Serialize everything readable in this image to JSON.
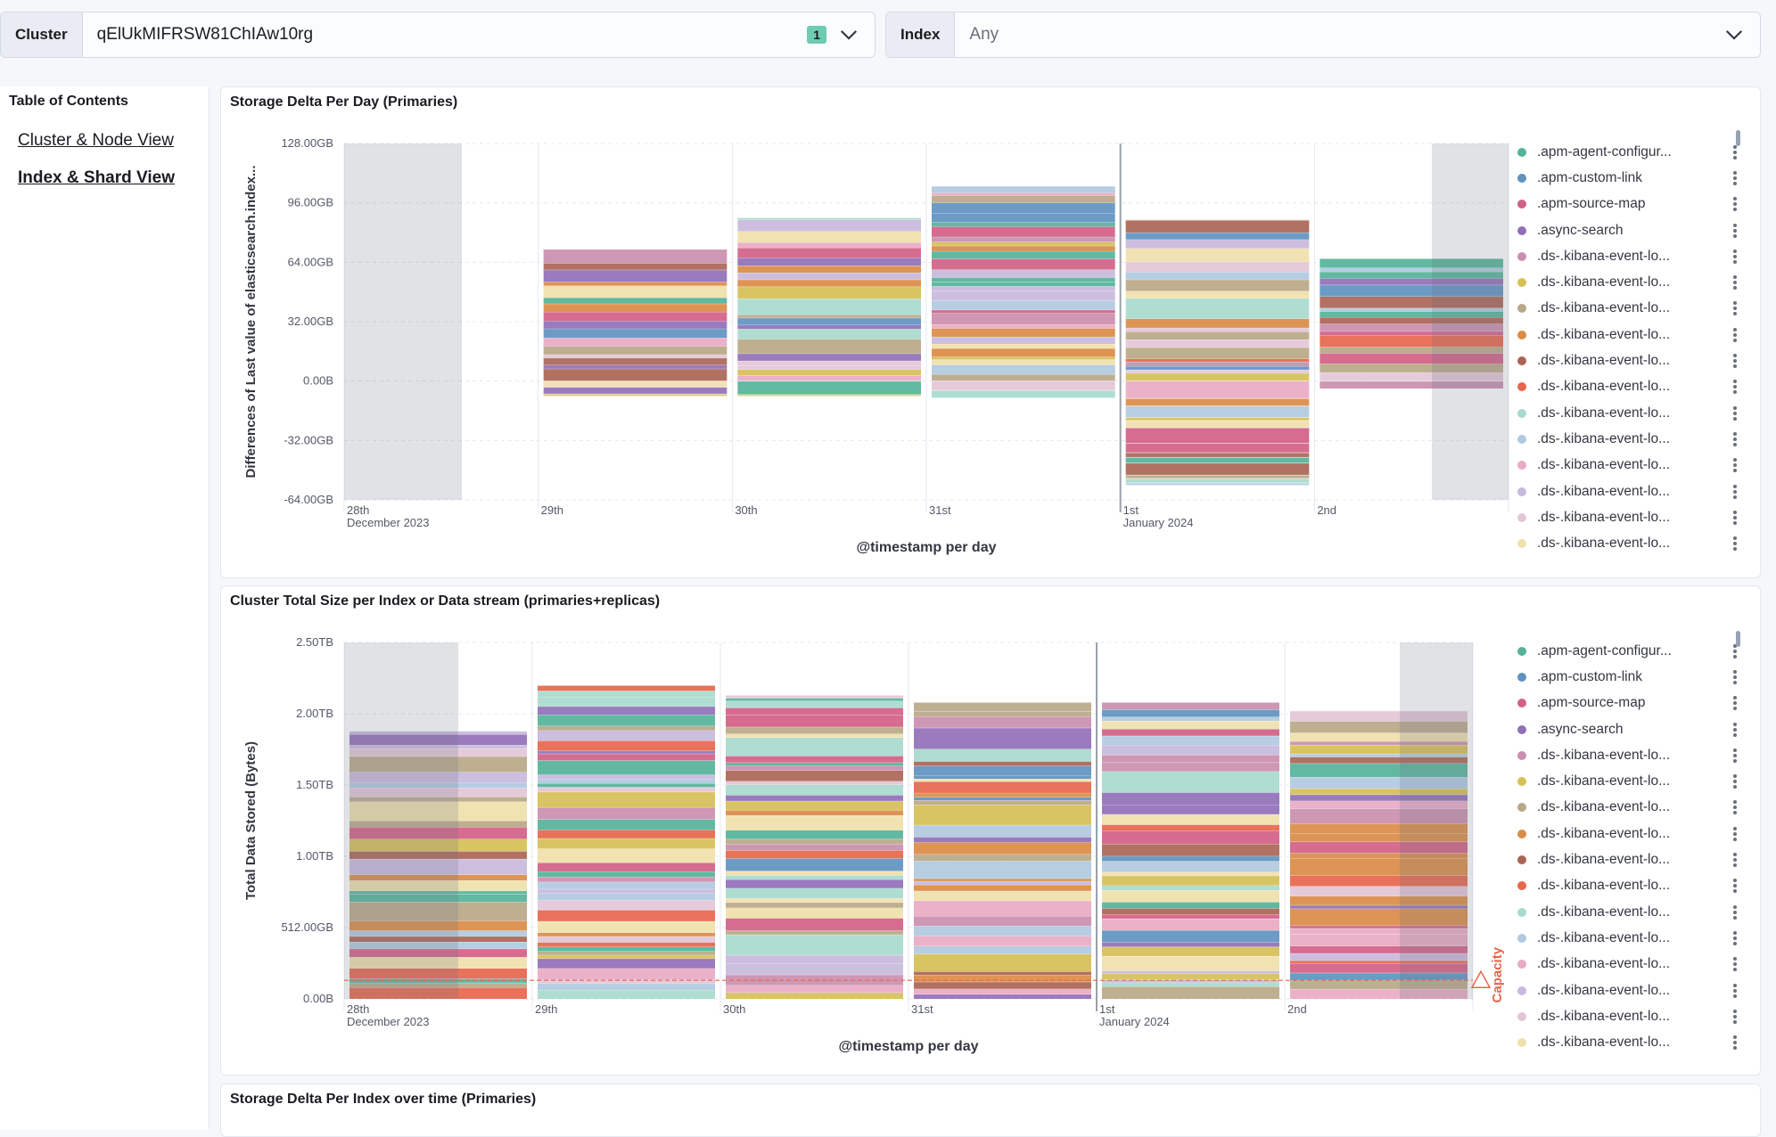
{
  "filters": {
    "cluster_label": "Cluster",
    "cluster_value": "qElUkMIFRSW81ChIAw10rg",
    "cluster_badge": "1",
    "index_label": "Index",
    "index_value": "Any"
  },
  "toc": {
    "title": "Table of Contents",
    "links": [
      "Cluster & Node View",
      "Index & Shard View"
    ]
  },
  "colors": [
    "#54b399",
    "#6092c0",
    "#d36086",
    "#9170b8",
    "#ca8eae",
    "#d6bf57",
    "#b9a888",
    "#da8b45",
    "#aa6556",
    "#e7664c",
    "#a8dacd",
    "#b0c9e0",
    "#e9aac3",
    "#c8b8dc",
    "#e3c6d7",
    "#f0e0ab"
  ],
  "legend": [
    ".apm-agent-configur...",
    ".apm-custom-link",
    ".apm-source-map",
    ".async-search",
    ".ds-.kibana-event-lo...",
    ".ds-.kibana-event-lo...",
    ".ds-.kibana-event-lo...",
    ".ds-.kibana-event-lo...",
    ".ds-.kibana-event-lo...",
    ".ds-.kibana-event-lo...",
    ".ds-.kibana-event-lo...",
    ".ds-.kibana-event-lo...",
    ".ds-.kibana-event-lo...",
    ".ds-.kibana-event-lo...",
    ".ds-.kibana-event-lo...",
    ".ds-.kibana-event-lo..."
  ],
  "chart_data": [
    {
      "type": "bar",
      "stacked": true,
      "title": "Storage Delta Per Day (Primaries)",
      "xlabel": "@timestamp per day",
      "ylabel": "Differences of Last value of elasticsearch.index...",
      "categories": [
        "28th",
        "29th",
        "30th",
        "31st",
        "1st",
        "2nd"
      ],
      "category_sublabels": [
        "December 2023",
        "",
        "",
        "",
        "January 2024",
        ""
      ],
      "ylim": [
        -64,
        128
      ],
      "yticks": [
        128,
        96,
        64,
        32,
        0,
        -32,
        -64
      ],
      "ytick_labels": [
        "128.00GB",
        "96.00GB",
        "64.00GB",
        "32.00GB",
        "0.00B",
        "-32.00GB",
        "-64.00GB"
      ],
      "unit": "GB",
      "totals_pos": [
        null,
        71,
        88,
        105,
        87,
        66
      ],
      "totals_neg": [
        null,
        -8,
        -8,
        -9,
        -56,
        -4
      ],
      "annotations": []
    },
    {
      "type": "bar",
      "stacked": true,
      "title": "Cluster Total Size per Index or Data stream (primaries+replicas)",
      "xlabel": "@timestamp per day",
      "ylabel": "Total Data Stored (Bytes)",
      "categories": [
        "28th",
        "29th",
        "30th",
        "31st",
        "1st",
        "2nd"
      ],
      "category_sublabels": [
        "December 2023",
        "",
        "",
        "",
        "January 2024",
        ""
      ],
      "ylim": [
        0,
        2.5
      ],
      "yticks": [
        2.5,
        2.0,
        1.5,
        1.0,
        0.5,
        0
      ],
      "ytick_labels": [
        "2.50TB",
        "2.00TB",
        "1.50TB",
        "1.00TB",
        "512.00GB",
        "0.00B"
      ],
      "unit": "TB",
      "totals_pos": [
        1.88,
        2.2,
        2.13,
        2.08,
        2.08,
        2.02
      ],
      "totals_neg": [
        null,
        null,
        null,
        null,
        null,
        null
      ],
      "annotations": [
        {
          "type": "threshold",
          "label": "Capacity",
          "value": 0.13
        }
      ]
    }
  ],
  "panel3": {
    "title": "Storage Delta Per Index over time (Primaries)"
  }
}
